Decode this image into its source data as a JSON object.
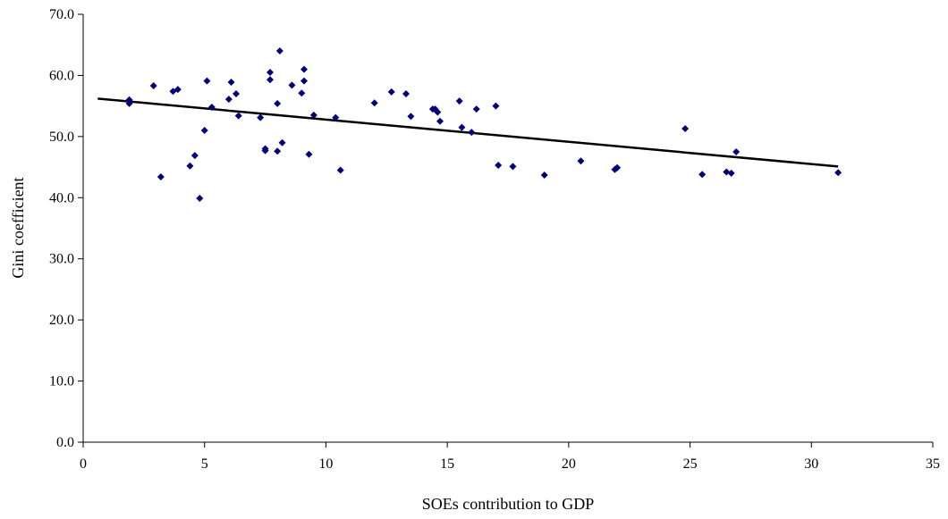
{
  "chart_data": {
    "type": "scatter",
    "title": "",
    "xlabel": "SOEs contribution to GDP",
    "ylabel": "Gini coefficient",
    "xlim": [
      0,
      35
    ],
    "ylim": [
      0,
      70
    ],
    "x_ticks": [
      "0",
      "5",
      "10",
      "15",
      "20",
      "25",
      "30",
      "35"
    ],
    "y_ticks": [
      "0.0",
      "10.0",
      "20.0",
      "30.0",
      "40.0",
      "50.0",
      "60.0",
      "70.0"
    ],
    "grid": false,
    "legend": "none",
    "marker_color": "#000080",
    "trendline_color": "#000000",
    "points": [
      {
        "x": 1.9,
        "y": 56.0
      },
      {
        "x": 1.9,
        "y": 55.4
      },
      {
        "x": 2.9,
        "y": 58.3
      },
      {
        "x": 3.2,
        "y": 43.4
      },
      {
        "x": 3.7,
        "y": 57.4
      },
      {
        "x": 3.9,
        "y": 57.7
      },
      {
        "x": 4.4,
        "y": 45.2
      },
      {
        "x": 4.6,
        "y": 46.9
      },
      {
        "x": 4.8,
        "y": 39.9
      },
      {
        "x": 5.0,
        "y": 51.0
      },
      {
        "x": 5.1,
        "y": 59.1
      },
      {
        "x": 5.3,
        "y": 54.8
      },
      {
        "x": 6.0,
        "y": 56.1
      },
      {
        "x": 6.1,
        "y": 58.9
      },
      {
        "x": 6.3,
        "y": 57.0
      },
      {
        "x": 6.4,
        "y": 53.4
      },
      {
        "x": 7.3,
        "y": 53.1
      },
      {
        "x": 7.5,
        "y": 47.7
      },
      {
        "x": 7.5,
        "y": 48.0
      },
      {
        "x": 7.7,
        "y": 60.5
      },
      {
        "x": 7.7,
        "y": 59.3
      },
      {
        "x": 8.0,
        "y": 55.4
      },
      {
        "x": 8.0,
        "y": 47.6
      },
      {
        "x": 8.1,
        "y": 64.0
      },
      {
        "x": 8.2,
        "y": 49.0
      },
      {
        "x": 8.6,
        "y": 58.4
      },
      {
        "x": 9.0,
        "y": 57.1
      },
      {
        "x": 9.1,
        "y": 61.0
      },
      {
        "x": 9.1,
        "y": 59.1
      },
      {
        "x": 9.3,
        "y": 47.1
      },
      {
        "x": 9.5,
        "y": 53.5
      },
      {
        "x": 10.4,
        "y": 53.1
      },
      {
        "x": 10.6,
        "y": 44.5
      },
      {
        "x": 12.0,
        "y": 55.5
      },
      {
        "x": 12.7,
        "y": 57.3
      },
      {
        "x": 13.3,
        "y": 57.0
      },
      {
        "x": 13.5,
        "y": 53.3
      },
      {
        "x": 14.4,
        "y": 54.5
      },
      {
        "x": 14.5,
        "y": 54.5
      },
      {
        "x": 14.6,
        "y": 54.0
      },
      {
        "x": 14.7,
        "y": 52.5
      },
      {
        "x": 15.5,
        "y": 55.8
      },
      {
        "x": 15.6,
        "y": 51.5
      },
      {
        "x": 16.0,
        "y": 50.7
      },
      {
        "x": 16.2,
        "y": 54.5
      },
      {
        "x": 17.0,
        "y": 55.0
      },
      {
        "x": 17.1,
        "y": 45.3
      },
      {
        "x": 17.7,
        "y": 45.1
      },
      {
        "x": 19.0,
        "y": 43.7
      },
      {
        "x": 20.5,
        "y": 46.0
      },
      {
        "x": 21.9,
        "y": 44.6
      },
      {
        "x": 22.0,
        "y": 44.9
      },
      {
        "x": 24.8,
        "y": 51.3
      },
      {
        "x": 25.5,
        "y": 43.8
      },
      {
        "x": 26.5,
        "y": 44.2
      },
      {
        "x": 26.7,
        "y": 44.0
      },
      {
        "x": 26.9,
        "y": 47.5
      },
      {
        "x": 31.1,
        "y": 44.1
      }
    ],
    "trendline": {
      "x": [
        0.6,
        31.1
      ],
      "y": [
        56.2,
        45.1
      ]
    }
  }
}
